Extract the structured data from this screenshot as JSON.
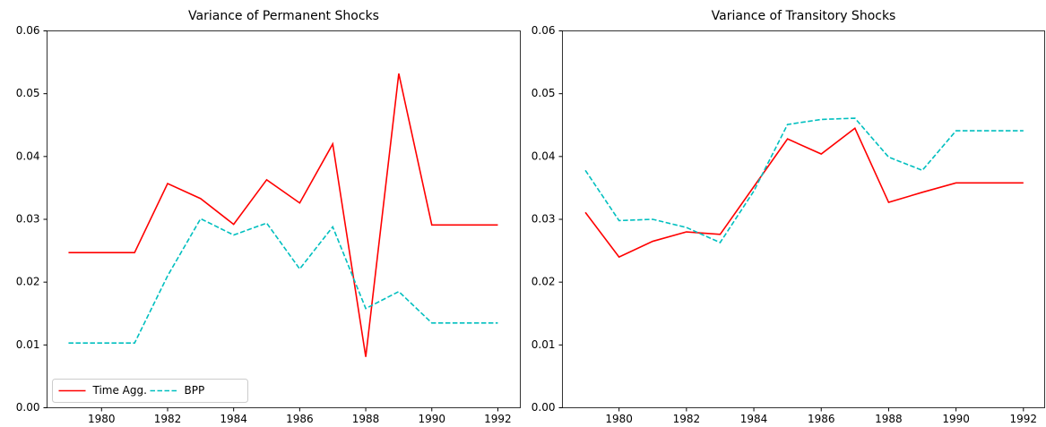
{
  "chart_data": [
    {
      "type": "line",
      "title": "Variance of Permanent Shocks",
      "x": [
        1979,
        1980,
        1981,
        1982,
        1983,
        1984,
        1985,
        1986,
        1987,
        1988,
        1989,
        1990,
        1991,
        1992
      ],
      "series": [
        {
          "name": "Time Agg.",
          "color": "#ff0000",
          "dash": false,
          "values": [
            0.0247,
            0.0247,
            0.0247,
            0.0357,
            0.0333,
            0.0292,
            0.0363,
            0.0326,
            0.042,
            0.0081,
            0.0532,
            0.0291,
            0.0291,
            0.0291
          ]
        },
        {
          "name": "BPP",
          "color": "#00bfbf",
          "dash": true,
          "values": [
            0.0103,
            0.0103,
            0.0103,
            0.021,
            0.0301,
            0.0275,
            0.0294,
            0.0221,
            0.0288,
            0.0158,
            0.0185,
            0.0135,
            0.0135,
            0.0135
          ]
        }
      ],
      "xlim": [
        1978.35,
        1992.68
      ],
      "xticks": [
        1980,
        1982,
        1984,
        1986,
        1988,
        1990,
        1992
      ],
      "ylim": [
        0,
        0.06
      ],
      "yticks": [
        {
          "value": 0,
          "label": "0.00"
        },
        {
          "value": 0.01,
          "label": "0.01"
        },
        {
          "value": 0.02,
          "label": "0.02"
        },
        {
          "value": 0.03,
          "label": "0.03"
        },
        {
          "value": 0.04,
          "label": "0.04"
        },
        {
          "value": 0.05,
          "label": "0.05"
        },
        {
          "value": 0.06,
          "label": "0.06"
        }
      ],
      "grid": false,
      "legend": "lower left"
    },
    {
      "type": "line",
      "title": "Variance of Transitory Shocks",
      "x": [
        1979,
        1980,
        1981,
        1982,
        1983,
        1984,
        1985,
        1986,
        1987,
        1988,
        1989,
        1990,
        1991,
        1992
      ],
      "series": [
        {
          "color": "#ff0000",
          "dash": false,
          "values": [
            0.0311,
            0.024,
            0.0265,
            0.028,
            0.0276,
            0.0352,
            0.0428,
            0.0404,
            0.0445,
            0.0327,
            0.0343,
            0.0358,
            0.0358,
            0.0358
          ]
        },
        {
          "color": "#00bfbf",
          "dash": true,
          "values": [
            0.0378,
            0.0298,
            0.03,
            0.0287,
            0.0263,
            0.0345,
            0.0451,
            0.0459,
            0.0461,
            0.0399,
            0.0378,
            0.0441,
            0.0441,
            0.0441
          ]
        }
      ],
      "xlim": [
        1978.32,
        1992.63
      ],
      "xticks": [
        1980,
        1982,
        1984,
        1986,
        1988,
        1990,
        1992
      ],
      "ylim": [
        0,
        0.06
      ],
      "yticks": [
        {
          "value": 0,
          "label": "0.00"
        },
        {
          "value": 0.01,
          "label": "0.01"
        },
        {
          "value": 0.02,
          "label": "0.02"
        },
        {
          "value": 0.03,
          "label": "0.03"
        },
        {
          "value": 0.04,
          "label": "0.04"
        },
        {
          "value": 0.05,
          "label": "0.05"
        },
        {
          "value": 0.06,
          "label": "0.06"
        }
      ],
      "grid": false
    }
  ]
}
